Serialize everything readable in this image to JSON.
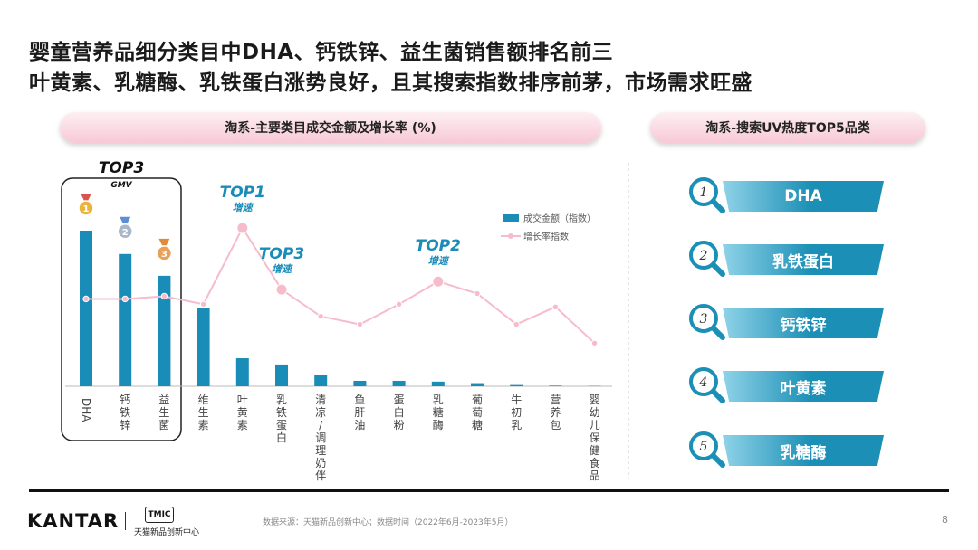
{
  "title": {
    "line1": "婴童营养品细分类目中DHA、钙铁锌、益生菌销售额排名前三",
    "line2": "叶黄素、乳糖酶、乳铁蛋白涨势良好，且其搜索指数排序前茅，市场需求旺盛"
  },
  "left_panel": {
    "header": "淘系-主要类目成交金额及增长率 (%)"
  },
  "right_panel": {
    "header": "淘系-搜索UV热度TOP5品类",
    "items": [
      {
        "rank": "1",
        "label": "DHA"
      },
      {
        "rank": "2",
        "label": "乳铁蛋白"
      },
      {
        "rank": "3",
        "label": "钙铁锌"
      },
      {
        "rank": "4",
        "label": "叶黄素"
      },
      {
        "rank": "5",
        "label": "乳糖酶"
      }
    ]
  },
  "colors": {
    "bar": "#1a8cb8",
    "line": "#f6bccb",
    "accent_text": "#1a8cb8",
    "rank_bar": "#1b8fb5"
  },
  "chart_data": {
    "type": "bar",
    "title": "淘系-主要类目成交金额及增长率 (%)",
    "categories": [
      "DHA",
      "钙铁锌",
      "益生菌",
      "维生素",
      "叶黄素",
      "乳铁蛋白",
      "清凉/调理奶伴",
      "鱼肝油",
      "蛋白粉",
      "乳糖酶",
      "葡萄糖",
      "牛初乳",
      "营养包",
      "婴幼儿保健食品"
    ],
    "series": [
      {
        "name": "成交金额（指数）",
        "type": "bar",
        "values": [
          100,
          85,
          71,
          50,
          18,
          14,
          7,
          3.5,
          3.5,
          3,
          2,
          0.8,
          0.4,
          0.2
        ]
      },
      {
        "name": "增长率指数",
        "type": "line",
        "values": [
          47,
          47,
          49,
          43,
          100,
          54,
          34,
          28,
          43,
          60,
          51,
          28,
          41,
          14
        ]
      }
    ],
    "legend_position": "top-right",
    "annotations": [
      {
        "title": "TOP3",
        "subtitle": "GMV",
        "category": "钙铁锌"
      },
      {
        "title": "TOP1",
        "subtitle": "增速",
        "category": "叶黄素"
      },
      {
        "title": "TOP3",
        "subtitle": "增速",
        "category": "乳铁蛋白"
      },
      {
        "title": "TOP2",
        "subtitle": "增速",
        "category": "乳糖酶"
      }
    ],
    "medals": [
      "1",
      "2",
      "3"
    ]
  },
  "footer": {
    "brand": "KANTAR",
    "partner_badge": "TMIC",
    "partner_name": "天猫新品创新中心",
    "source": "数据来源：天猫新品创新中心；数据时间（2022年6月-2023年5月）",
    "page": "8"
  }
}
